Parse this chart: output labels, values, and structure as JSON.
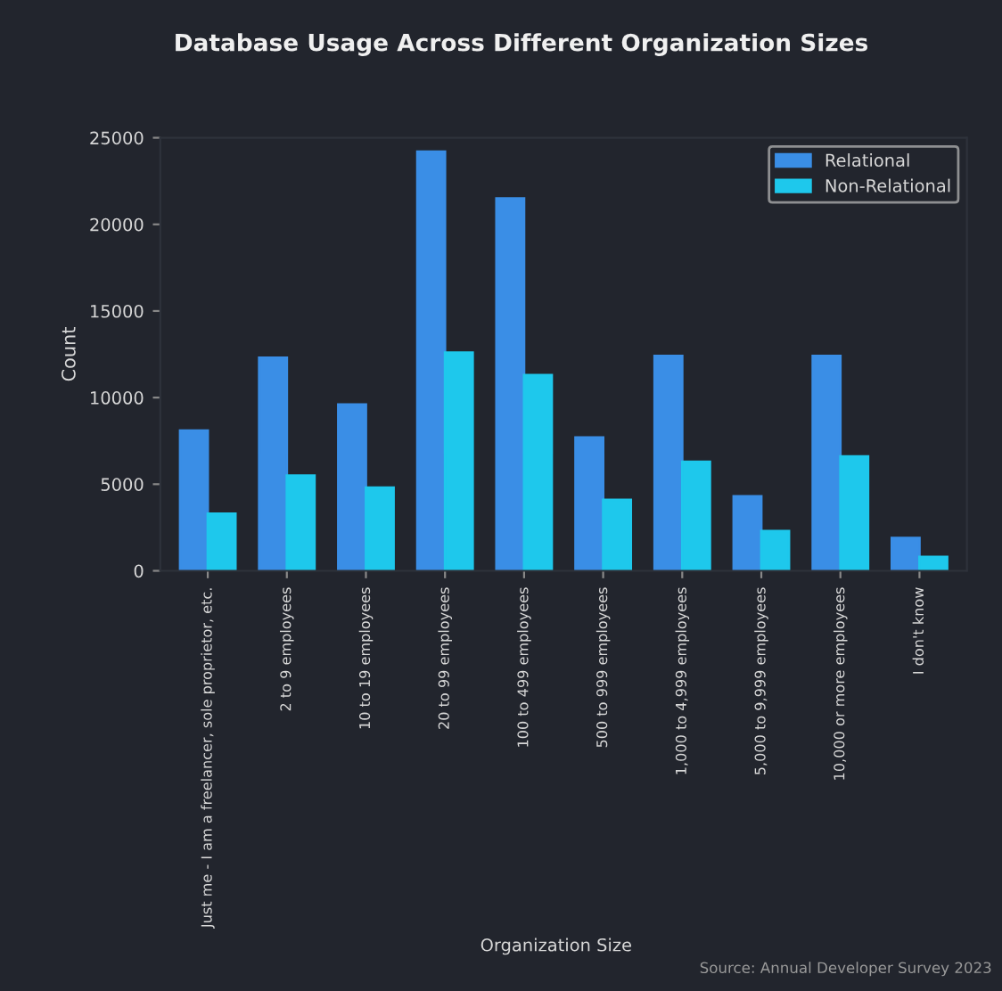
{
  "chart_data": {
    "type": "bar",
    "title": "Database Usage Across Different Organization Sizes",
    "xlabel": "Organization Size",
    "ylabel": "Count",
    "categories": [
      "Just me - I am a freelancer, sole proprietor, etc.",
      "2 to 9 employees",
      "10 to 19 employees",
      "20 to 99 employees",
      "100 to 499 employees",
      "500 to 999 employees",
      "1,000 to 4,999 employees",
      "5,000 to 9,999 employees",
      "10,000 or more employees",
      "I don't know"
    ],
    "series": [
      {
        "name": "Relational",
        "color": "#3a8ee6",
        "values": [
          8100,
          12300,
          9600,
          24200,
          21500,
          7700,
          12400,
          4300,
          12400,
          1900
        ]
      },
      {
        "name": "Non-Relational",
        "color": "#1ec8ec",
        "values": [
          3300,
          5500,
          4800,
          12600,
          11300,
          4100,
          6300,
          2300,
          6600,
          800
        ]
      }
    ],
    "ylim": [
      0,
      25000
    ],
    "yticks": [
      0,
      5000,
      10000,
      15000,
      20000,
      25000
    ],
    "grid": false,
    "legend": "top right",
    "annotations": [
      "Source: Annual Developer Survey 2023"
    ]
  }
}
